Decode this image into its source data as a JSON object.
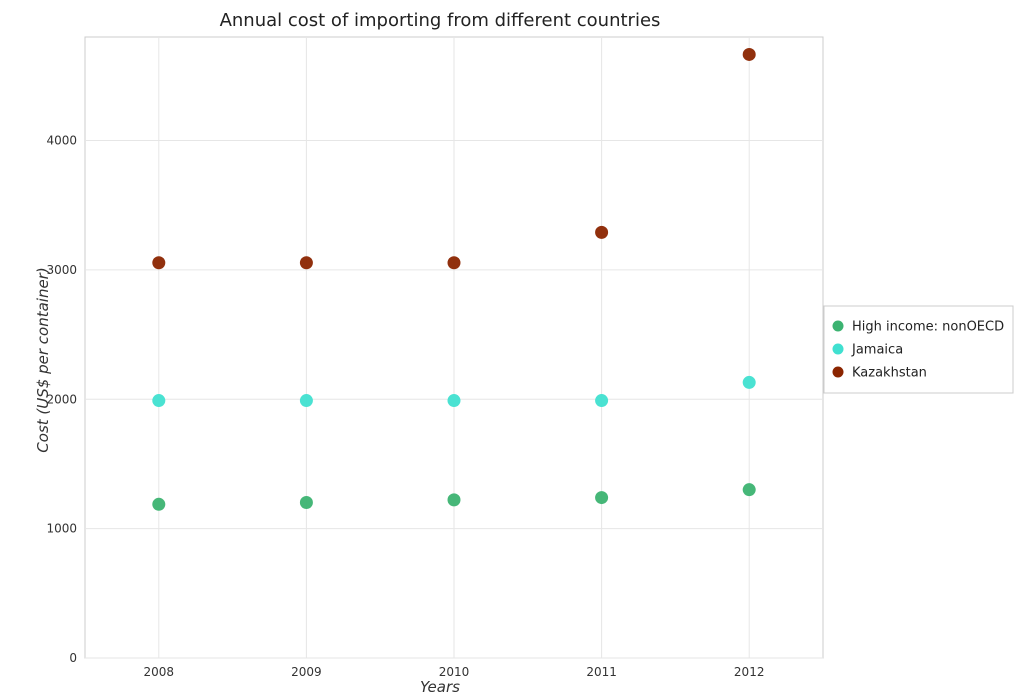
{
  "chart_data": {
    "type": "scatter",
    "title": "Annual cost of importing from different countries",
    "xlabel": "Years",
    "ylabel": "Cost (US$ per container)",
    "x": [
      "2008",
      "2009",
      "2010",
      "2011",
      "2012"
    ],
    "ylim": [
      0,
      4800
    ],
    "yticks": [
      0,
      1000,
      2000,
      3000,
      4000
    ],
    "grid": true,
    "legend_position": "right",
    "series": [
      {
        "name": "High income: nonOECD",
        "color": "#3cb371",
        "values": [
          1188,
          1202,
          1222,
          1240,
          1301
        ]
      },
      {
        "name": "Jamaica",
        "color": "#40e0d0",
        "values": [
          1990,
          1990,
          1990,
          1990,
          2130
        ]
      },
      {
        "name": "Kazakhstan",
        "color": "#8b2500",
        "values": [
          3055,
          3055,
          3055,
          3290,
          4665
        ]
      }
    ]
  }
}
